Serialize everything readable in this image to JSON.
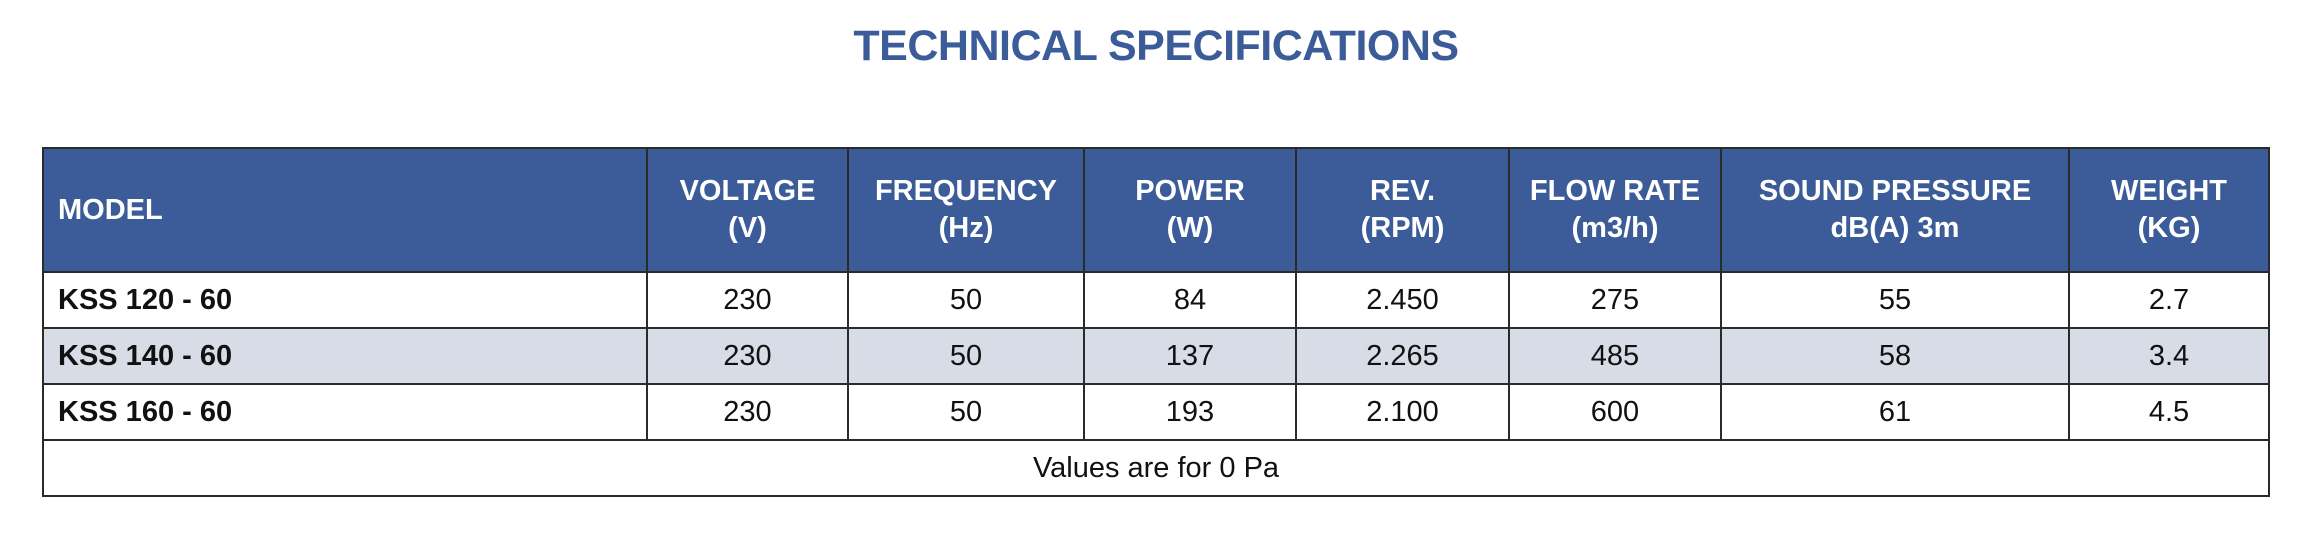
{
  "title": "TECHNICAL SPECIFICATIONS",
  "colors": {
    "header_bg": "#3b5c99",
    "title": "#3b5c99",
    "alt_row_bg": "#d8dce6",
    "border": "#2b2b2b"
  },
  "table": {
    "headers": [
      {
        "line1": "MODEL",
        "line2": ""
      },
      {
        "line1": "VOLTAGE",
        "line2": "(V)"
      },
      {
        "line1": "FREQUENCY",
        "line2": "(Hz)"
      },
      {
        "line1": "POWER",
        "line2": "(W)"
      },
      {
        "line1": "REV.",
        "line2": "(RPM)"
      },
      {
        "line1": "FLOW RATE",
        "line2": "(m3/h)"
      },
      {
        "line1": "SOUND PRESSURE",
        "line2": "dB(A) 3m"
      },
      {
        "line1": "WEIGHT",
        "line2": "(KG)"
      }
    ],
    "rows": [
      {
        "model": "KSS 120 - 60",
        "voltage": "230",
        "frequency": "50",
        "power": "84",
        "rev": "2.450",
        "flow_rate": "275",
        "sound_pressure": "55",
        "weight": "2.7"
      },
      {
        "model": "KSS 140 - 60",
        "voltage": "230",
        "frequency": "50",
        "power": "137",
        "rev": "2.265",
        "flow_rate": "485",
        "sound_pressure": "58",
        "weight": "3.4"
      },
      {
        "model": "KSS 160 - 60",
        "voltage": "230",
        "frequency": "50",
        "power": "193",
        "rev": "2.100",
        "flow_rate": "600",
        "sound_pressure": "61",
        "weight": "4.5"
      }
    ],
    "footnote": "Values are for 0 Pa"
  }
}
